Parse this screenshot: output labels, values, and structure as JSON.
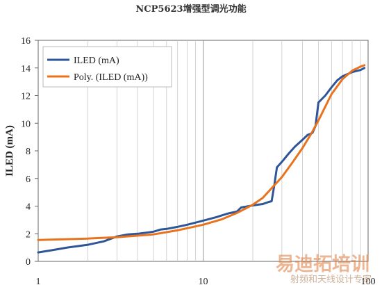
{
  "chart_data": {
    "type": "line",
    "title": "NCP5623增强型调光功能",
    "xlabel": "",
    "ylabel": "ILED (mA)",
    "xscale": "log",
    "xlim": [
      1,
      100
    ],
    "ylim": [
      0,
      16
    ],
    "x_ticks": [
      "1",
      "10",
      "100"
    ],
    "y_ticks": [
      "0",
      "2",
      "4",
      "6",
      "8",
      "10",
      "12",
      "14",
      "16"
    ],
    "grid": "vertical log minor",
    "legend_position": "top-left",
    "series": [
      {
        "name": "ILED (mA)",
        "color": "#2e5597",
        "points": [
          [
            1.0,
            0.65
          ],
          [
            1.2,
            0.8
          ],
          [
            1.5,
            1.0
          ],
          [
            2.0,
            1.2
          ],
          [
            2.5,
            1.45
          ],
          [
            3.0,
            1.8
          ],
          [
            3.5,
            1.95
          ],
          [
            4.0,
            2.0
          ],
          [
            5.0,
            2.15
          ],
          [
            5.5,
            2.3
          ],
          [
            6.0,
            2.35
          ],
          [
            7.0,
            2.5
          ],
          [
            8.0,
            2.65
          ],
          [
            10.0,
            2.95
          ],
          [
            12.0,
            3.2
          ],
          [
            14.0,
            3.45
          ],
          [
            16.0,
            3.6
          ],
          [
            17.0,
            3.9
          ],
          [
            20.0,
            4.05
          ],
          [
            23.0,
            4.15
          ],
          [
            25.0,
            4.3
          ],
          [
            26.0,
            4.35
          ],
          [
            27.0,
            5.5
          ],
          [
            28.0,
            6.8
          ],
          [
            30.0,
            7.2
          ],
          [
            33.0,
            7.8
          ],
          [
            36.0,
            8.3
          ],
          [
            40.0,
            8.8
          ],
          [
            43.0,
            9.15
          ],
          [
            46.0,
            9.3
          ],
          [
            48.0,
            9.8
          ],
          [
            50.0,
            11.5
          ],
          [
            55.0,
            12.0
          ],
          [
            60.0,
            12.6
          ],
          [
            65.0,
            13.1
          ],
          [
            70.0,
            13.4
          ],
          [
            80.0,
            13.7
          ],
          [
            90.0,
            13.85
          ],
          [
            95.0,
            14.0
          ]
        ]
      },
      {
        "name": "Poly. (ILED (mA))",
        "color": "#e8731e",
        "points": [
          [
            1.0,
            1.55
          ],
          [
            2.0,
            1.65
          ],
          [
            3.0,
            1.75
          ],
          [
            5.0,
            1.95
          ],
          [
            7.0,
            2.25
          ],
          [
            10.0,
            2.65
          ],
          [
            13.0,
            3.05
          ],
          [
            16.0,
            3.5
          ],
          [
            20.0,
            4.1
          ],
          [
            23.0,
            4.6
          ],
          [
            26.0,
            5.3
          ],
          [
            30.0,
            6.1
          ],
          [
            35.0,
            7.2
          ],
          [
            40.0,
            8.2
          ],
          [
            45.0,
            9.2
          ],
          [
            50.0,
            10.2
          ],
          [
            55.0,
            11.2
          ],
          [
            60.0,
            12.1
          ],
          [
            70.0,
            13.2
          ],
          [
            80.0,
            13.8
          ],
          [
            90.0,
            14.1
          ],
          [
            95.0,
            14.2
          ]
        ]
      }
    ]
  },
  "watermark": {
    "main": "易迪拓培训",
    "sub": "射频和天线设计专家"
  }
}
